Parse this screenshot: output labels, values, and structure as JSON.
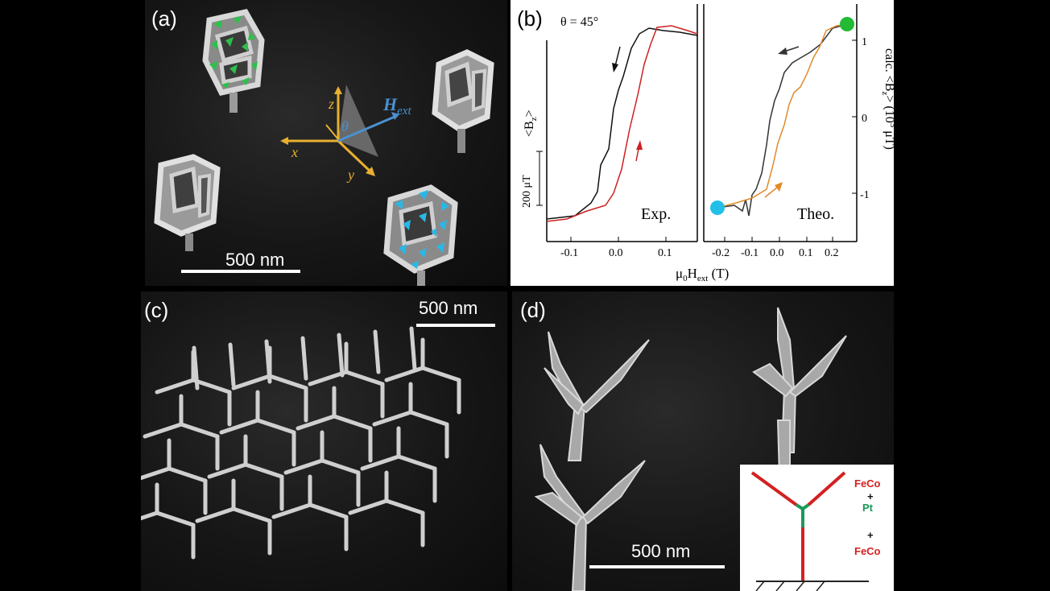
{
  "panel_a": {
    "label": "(a)",
    "scale": "500 nm",
    "axes": {
      "z": "z",
      "x": "x",
      "y": "y",
      "theta": "θ",
      "hext": "H",
      "hext_sub": "ext"
    }
  },
  "panel_b": {
    "label": "(b)",
    "theta": "θ = 45°",
    "left": {
      "tag": "Exp.",
      "scale": "200 μT",
      "ylabel": "<B",
      "ylabel_sub": "z",
      "ylabel_end": ">",
      "xticks": [
        "-0.1",
        "0.0",
        "0.1"
      ]
    },
    "right": {
      "tag": "Theo.",
      "ylabel": "calc. <B",
      "ylabel_sub": "z",
      "ylabel_mid": "> (10",
      "ylabel_sup": "3",
      "ylabel_end": " μT)",
      "xticks": [
        "-0.2",
        "-0.1",
        "0.0",
        "0.1",
        "0.2"
      ],
      "yticks": [
        "1",
        "0",
        "-1"
      ]
    },
    "xlabel": "μ",
    "xlabel_sub0": "0",
    "xlabel_mid": "H",
    "xlabel_sub1": "ext",
    "xlabel_end": " (T)",
    "colors": {
      "exp_black": "#111111",
      "exp_red": "#cc2222",
      "theo_black": "#333333",
      "theo_orange": "#e08a2a",
      "start_dot": "#22c0e8",
      "end_dot": "#22bb33"
    }
  },
  "panel_c": {
    "label": "(c)",
    "scale": "500 nm"
  },
  "panel_d": {
    "label": "(d)",
    "scale": "500 nm",
    "inset": {
      "feco_top": "FeCo",
      "plus1": "+",
      "pt": "Pt",
      "plus2": "+",
      "feco_bottom": "FeCo"
    },
    "colors": {
      "feco": "#d42020",
      "pt": "#1a9a55"
    }
  }
}
